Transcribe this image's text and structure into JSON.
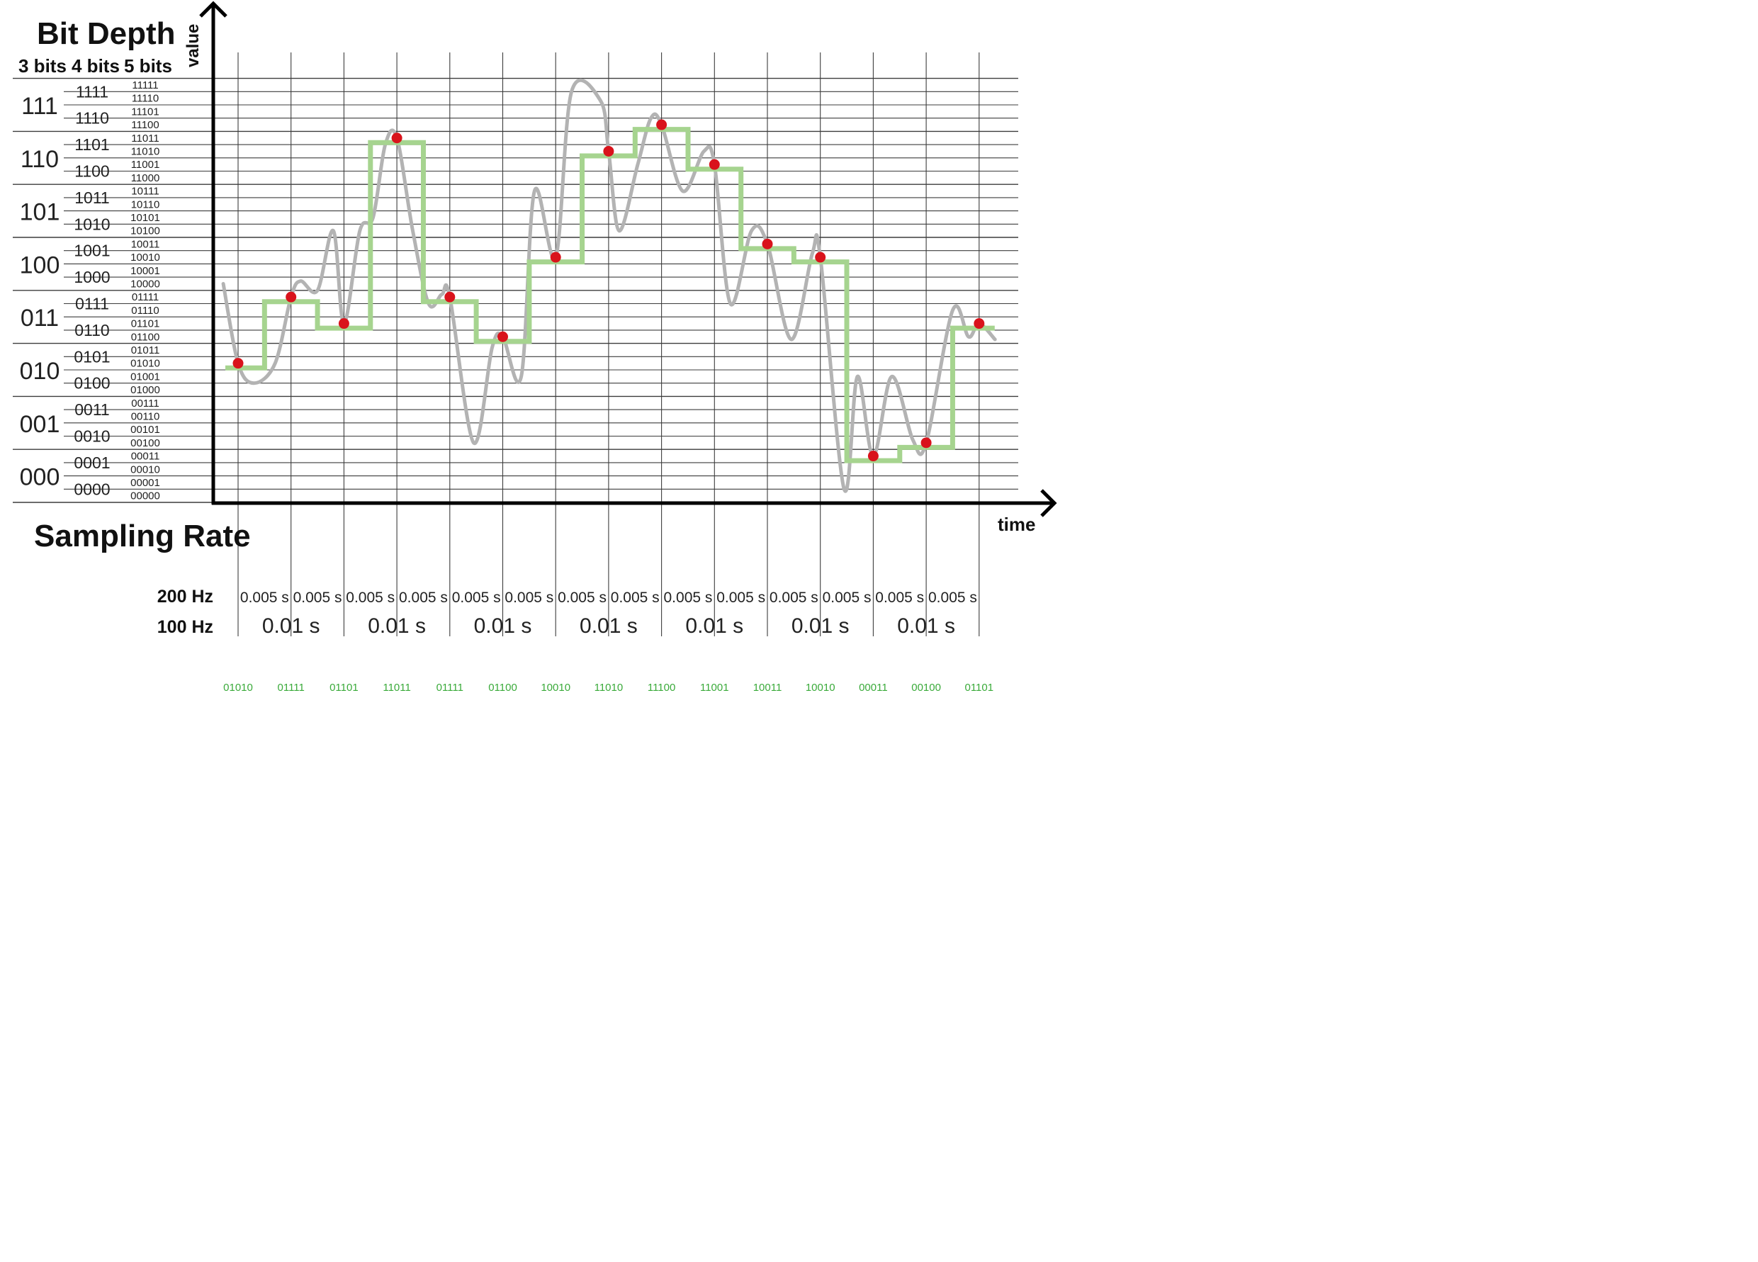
{
  "diagram": {
    "title_bit_depth": "Bit Depth",
    "title_sampling_rate": "Sampling Rate",
    "axis_y": "value",
    "axis_x": "time",
    "bit_depth_columns": [
      "3 bits",
      "4 bits",
      "5 bits"
    ],
    "levels_3bit": [
      "111",
      "110",
      "101",
      "100",
      "011",
      "010",
      "001",
      "000"
    ],
    "levels_4bit": [
      "1111",
      "1110",
      "1101",
      "1100",
      "1011",
      "1010",
      "1001",
      "1000",
      "0111",
      "0110",
      "0101",
      "0100",
      "0011",
      "0010",
      "0001",
      "0000"
    ],
    "levels_5bit": [
      "11111",
      "11110",
      "11101",
      "11100",
      "11011",
      "11010",
      "11001",
      "11000",
      "10111",
      "10110",
      "10101",
      "10100",
      "10011",
      "10010",
      "10001",
      "10000",
      "01111",
      "01110",
      "01101",
      "01100",
      "01011",
      "01010",
      "01001",
      "01000",
      "00111",
      "00110",
      "00101",
      "00100",
      "00011",
      "00010",
      "00001",
      "00000"
    ],
    "rate_200_label": "200 Hz",
    "rate_100_label": "100 Hz",
    "period_200": "0.005 s",
    "period_100": "0.01 s",
    "period_200_count": 14,
    "period_100_count": 7,
    "sample_levels_5bit": [
      10,
      15,
      13,
      27,
      15,
      12,
      18,
      26,
      28,
      25,
      19,
      18,
      3,
      4,
      13
    ],
    "sample_codes": [
      "01010",
      "01111",
      "01101",
      "11011",
      "01111",
      "01100",
      "10010",
      "11010",
      "11100",
      "11001",
      "10011",
      "10010",
      "00011",
      "00100",
      "01101"
    ],
    "colors": {
      "quantized_step": "#a6d48f",
      "analog_signal": "#b3b3b3",
      "sample_point": "#d9131b",
      "code_text": "#3aaa3a",
      "grid": "#3c3c3c",
      "axis": "#000000"
    }
  }
}
